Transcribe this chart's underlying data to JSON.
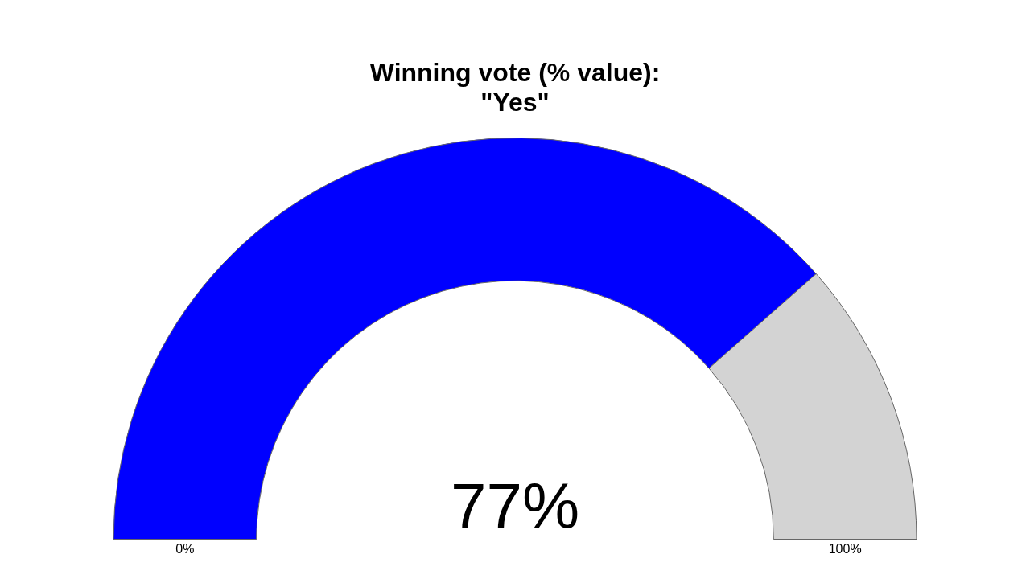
{
  "chart_data": {
    "type": "donut",
    "title": "Winning vote (% value):\n\"Yes\"",
    "categories": [
      null,
      null
    ],
    "values": [
      77,
      23
    ],
    "colors": [
      "#0000ff",
      "#d3d3d3"
    ],
    "value_labels": [
      "77%",
      null
    ],
    "annotations": [
      "0%",
      "100%"
    ],
    "legend": false
  }
}
